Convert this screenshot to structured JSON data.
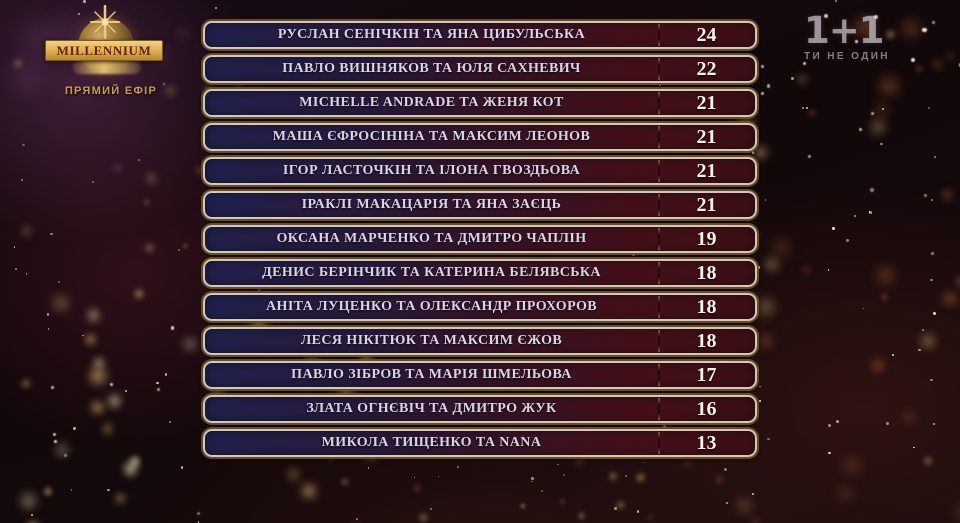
{
  "broadcast": {
    "studio": {
      "name": "MILLENNIUM",
      "status": "ПРЯМИЙ ЕФІР"
    },
    "channel": {
      "logo": "1+1",
      "tagline": "ТИ НЕ ОДИН"
    }
  },
  "scoreboard": {
    "rows": [
      {
        "name": "РУСЛАН СЕНІЧКІН ТА ЯНА ЦИБУЛЬСЬКА",
        "score": 24
      },
      {
        "name": "ПАВЛО ВИШНЯКОВ ТА ЮЛЯ САХНЕВИЧ",
        "score": 22
      },
      {
        "name": "MICHELLE ANDRADE ТА ЖЕНЯ КОТ",
        "score": 21
      },
      {
        "name": "МАША ЄФРОСІНІНА ТА МАКСИМ ЛЕОНОВ",
        "score": 21
      },
      {
        "name": "ІГОР ЛАСТОЧКІН ТА ІЛОНА ГВОЗДЬОВА",
        "score": 21
      },
      {
        "name": "ІРАКЛІ МАКАЦАРІЯ ТА ЯНА ЗАЄЦЬ",
        "score": 21
      },
      {
        "name": "ОКСАНА МАРЧЕНКО ТА ДМИТРО ЧАПЛІН",
        "score": 19
      },
      {
        "name": "ДЕНИС БЕРІНЧИК ТА КАТЕРИНА БЕЛЯВСЬКА",
        "score": 18
      },
      {
        "name": "АНІТА ЛУЦЕНКО ТА ОЛЕКСАНДР ПРОХОРОВ",
        "score": 18
      },
      {
        "name": "ЛЕСЯ НІКІТЮК ТА МАКСИМ ЄЖОВ",
        "score": 18
      },
      {
        "name": "ПАВЛО ЗІБРОВ ТА МАРІЯ ШМЕЛЬОВА",
        "score": 17
      },
      {
        "name": "ЗЛАТА ОГНЄВІЧ ТА ДМИТРО ЖУК",
        "score": 16
      },
      {
        "name": "МИКОЛА ТИЩЕНКО ТА NANA",
        "score": 13
      }
    ]
  },
  "colors": {
    "accent_gold": "#c9a35a",
    "border_silver": "#e0d8c8",
    "row_gradient_left": "#20214d",
    "row_gradient_right": "#3d0f16",
    "name_text": "#dad4e6",
    "score_text": "#f7f1e3",
    "banner_text": "#6d1d12"
  }
}
